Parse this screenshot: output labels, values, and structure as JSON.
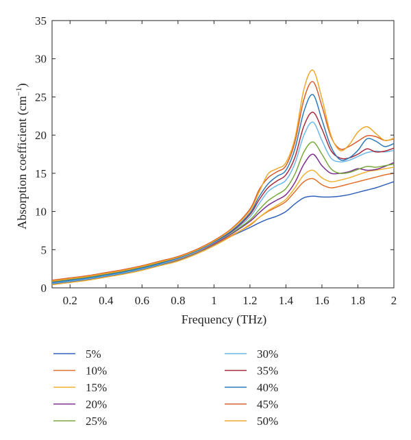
{
  "chart_data": {
    "type": "line",
    "title": "",
    "xlabel": "Frequency (THz)",
    "ylabel": "Absorption coefficient (cm",
    "ylabel_sup": "−1",
    "ylabel_close": ")",
    "xlim": [
      0.1,
      2.0
    ],
    "ylim": [
      0,
      35
    ],
    "x_ticks": [
      "0.2",
      "0.4",
      "0.6",
      "0.8",
      "1",
      "1.2",
      "1.4",
      "1.6",
      "1.8",
      "2"
    ],
    "y_ticks": [
      "0",
      "5",
      "10",
      "15",
      "20",
      "25",
      "30",
      "35"
    ],
    "grid": false,
    "legend_position": "below",
    "x": [
      0.1,
      0.2,
      0.3,
      0.4,
      0.5,
      0.6,
      0.7,
      0.8,
      0.9,
      1.0,
      1.1,
      1.2,
      1.25,
      1.3,
      1.35,
      1.4,
      1.45,
      1.5,
      1.55,
      1.6,
      1.65,
      1.7,
      1.75,
      1.8,
      1.85,
      1.9,
      1.95,
      2.0
    ],
    "series": [
      {
        "name": "5%",
        "color": "#3060b8",
        "values": [
          0.5,
          0.8,
          1.1,
          1.5,
          1.9,
          2.4,
          3.0,
          3.6,
          4.5,
          5.6,
          6.8,
          7.9,
          8.5,
          9.0,
          9.4,
          10.0,
          11.0,
          11.8,
          12.0,
          11.9,
          11.9,
          12.0,
          12.2,
          12.5,
          12.8,
          13.1,
          13.5,
          13.9
        ]
      },
      {
        "name": "10%",
        "color": "#e0702a",
        "values": [
          0.6,
          0.9,
          1.2,
          1.6,
          2.0,
          2.5,
          3.1,
          3.7,
          4.6,
          5.7,
          6.9,
          8.2,
          9.2,
          10.0,
          10.6,
          11.3,
          12.6,
          13.9,
          14.3,
          13.5,
          13.1,
          13.3,
          13.6,
          13.9,
          14.2,
          14.5,
          14.8,
          15.0
        ]
      },
      {
        "name": "15%",
        "color": "#f0b030",
        "values": [
          0.4,
          0.7,
          1.0,
          1.4,
          1.8,
          2.3,
          2.9,
          3.5,
          4.4,
          5.5,
          6.8,
          8.3,
          9.2,
          10.1,
          10.8,
          11.6,
          13.1,
          14.8,
          15.4,
          14.4,
          13.9,
          14.1,
          14.4,
          14.8,
          15.2,
          15.4,
          15.6,
          15.8
        ]
      },
      {
        "name": "20%",
        "color": "#7a2d8c",
        "values": [
          0.7,
          1.0,
          1.3,
          1.7,
          2.1,
          2.6,
          3.2,
          3.8,
          4.7,
          5.8,
          7.1,
          8.7,
          9.8,
          10.8,
          11.5,
          12.2,
          13.8,
          16.2,
          17.5,
          16.0,
          15.0,
          15.0,
          15.2,
          15.6,
          15.4,
          15.5,
          15.9,
          16.4
        ]
      },
      {
        "name": "25%",
        "color": "#78a83a",
        "values": [
          0.8,
          1.1,
          1.4,
          1.8,
          2.2,
          2.7,
          3.3,
          3.9,
          4.8,
          5.9,
          7.2,
          8.9,
          10.2,
          11.4,
          12.2,
          13.0,
          14.9,
          17.8,
          19.1,
          17.5,
          15.6,
          15.0,
          15.1,
          15.5,
          15.9,
          15.8,
          16.0,
          16.2
        ]
      },
      {
        "name": "30%",
        "color": "#6ab8e8",
        "values": [
          0.6,
          0.9,
          1.2,
          1.6,
          2.0,
          2.5,
          3.1,
          3.8,
          4.7,
          5.9,
          7.3,
          9.3,
          11.0,
          12.6,
          13.4,
          14.1,
          16.3,
          20.0,
          21.7,
          19.3,
          17.0,
          16.5,
          16.7,
          17.2,
          17.7,
          17.9,
          17.8,
          18.0
        ]
      },
      {
        "name": "35%",
        "color": "#a8283c",
        "values": [
          0.9,
          1.2,
          1.5,
          1.9,
          2.3,
          2.8,
          3.4,
          4.0,
          4.9,
          6.0,
          7.4,
          9.6,
          11.5,
          13.1,
          14.0,
          14.8,
          17.1,
          21.2,
          23.0,
          20.8,
          18.0,
          17.0,
          17.0,
          17.5,
          18.2,
          17.8,
          17.9,
          18.3
        ]
      },
      {
        "name": "40%",
        "color": "#2c78b8",
        "values": [
          0.7,
          1.0,
          1.3,
          1.7,
          2.1,
          2.6,
          3.2,
          3.9,
          4.8,
          6.0,
          7.5,
          9.8,
          11.9,
          13.6,
          14.6,
          15.4,
          18.2,
          23.1,
          25.3,
          22.0,
          18.5,
          16.8,
          17.0,
          18.0,
          19.5,
          19.2,
          18.5,
          18.9
        ]
      },
      {
        "name": "45%",
        "color": "#d85a2a",
        "values": [
          1.0,
          1.3,
          1.6,
          2.0,
          2.4,
          2.9,
          3.5,
          4.1,
          5.0,
          6.2,
          7.8,
          10.3,
          12.8,
          14.4,
          15.2,
          16.0,
          19.1,
          24.7,
          27.0,
          23.8,
          19.8,
          18.2,
          18.5,
          19.2,
          19.9,
          19.8,
          19.3,
          19.5
        ]
      },
      {
        "name": "50%",
        "color": "#eea82a",
        "values": [
          0.9,
          1.2,
          1.5,
          1.9,
          2.3,
          2.8,
          3.4,
          4.0,
          4.9,
          6.1,
          7.7,
          10.1,
          12.5,
          14.9,
          15.6,
          16.4,
          19.6,
          26.0,
          28.5,
          24.8,
          20.0,
          18.0,
          18.7,
          20.4,
          21.1,
          20.2,
          19.3,
          19.6
        ]
      }
    ]
  }
}
